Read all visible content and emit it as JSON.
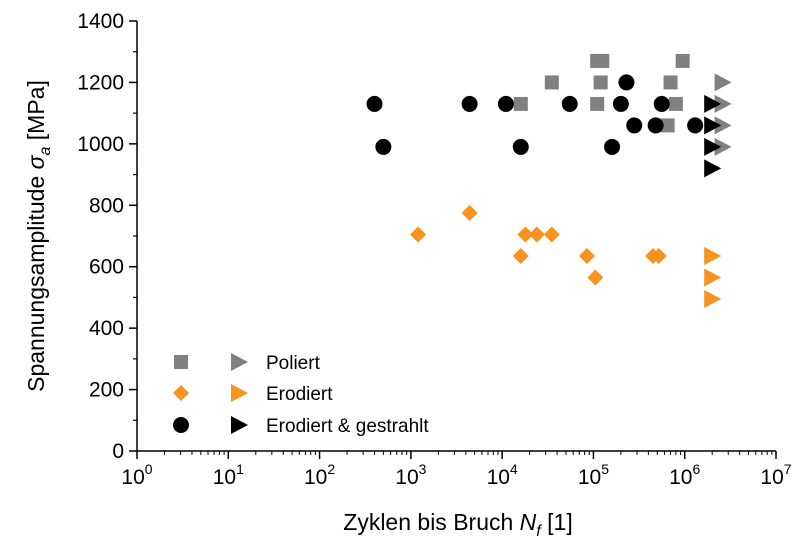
{
  "chart_data": {
    "type": "scatter",
    "title": "",
    "xlabel": {
      "main": "Zyklen bis Bruch ",
      "symbol": "N",
      "sub": "f",
      "unit": " [1]"
    },
    "ylabel": {
      "main": "Spannungsamplitude ",
      "symbol": "σ",
      "sub": "a",
      "unit": " [MPa]"
    },
    "x_scale": "log",
    "xlim": [
      1,
      10000000
    ],
    "ylim": [
      0,
      1400
    ],
    "x_ticks": [
      {
        "base": "10",
        "exp": "0",
        "value": 1
      },
      {
        "base": "10",
        "exp": "1",
        "value": 10
      },
      {
        "base": "10",
        "exp": "2",
        "value": 100
      },
      {
        "base": "10",
        "exp": "3",
        "value": 1000
      },
      {
        "base": "10",
        "exp": "4",
        "value": 10000
      },
      {
        "base": "10",
        "exp": "5",
        "value": 100000
      },
      {
        "base": "10",
        "exp": "6",
        "value": 1000000
      },
      {
        "base": "10",
        "exp": "7",
        "value": 10000000
      }
    ],
    "y_ticks": [
      "0",
      "200",
      "400",
      "600",
      "800",
      "1000",
      "1200",
      "1400"
    ],
    "grid": false,
    "legend_position": "bottom-left",
    "legend": [
      {
        "label": "Poliert",
        "color": "#808080"
      },
      {
        "label": "Erodiert",
        "color": "#f7931e"
      },
      {
        "label": "Erodiert & gestrahlt",
        "color": "#000000"
      }
    ],
    "series": [
      {
        "group": "Poliert",
        "marker": "square",
        "color": "#808080",
        "points": [
          [
            16000,
            1130
          ],
          [
            35000,
            1200
          ],
          [
            110000,
            1270
          ],
          [
            125000,
            1270
          ],
          [
            120000,
            1200
          ],
          [
            110000,
            1130
          ],
          [
            700000,
            1200
          ],
          [
            800000,
            1130
          ],
          [
            950000,
            1270
          ],
          [
            650000,
            1060
          ]
        ]
      },
      {
        "group": "Poliert",
        "marker": "triangle",
        "color": "#808080",
        "points": [
          [
            2600000,
            1200
          ],
          [
            2600000,
            1130
          ],
          [
            2600000,
            1060
          ],
          [
            2600000,
            990
          ]
        ]
      },
      {
        "group": "Erodiert",
        "marker": "diamond",
        "color": "#f7931e",
        "points": [
          [
            1200,
            705
          ],
          [
            4400,
            775
          ],
          [
            16000,
            635
          ],
          [
            18000,
            705
          ],
          [
            24000,
            705
          ],
          [
            35000,
            705
          ],
          [
            85000,
            635
          ],
          [
            105000,
            565
          ],
          [
            450000,
            635
          ],
          [
            520000,
            635
          ]
        ]
      },
      {
        "group": "Erodiert",
        "marker": "triangle",
        "color": "#f7931e",
        "points": [
          [
            2000000,
            635
          ],
          [
            2000000,
            565
          ],
          [
            2000000,
            495
          ]
        ]
      },
      {
        "group": "Erodiert & gestrahlt",
        "marker": "circle",
        "color": "#000000",
        "points": [
          [
            400,
            1130
          ],
          [
            500,
            990
          ],
          [
            4400,
            1130
          ],
          [
            11000,
            1130
          ],
          [
            16000,
            990
          ],
          [
            55000,
            1130
          ],
          [
            160000,
            990
          ],
          [
            200000,
            1130
          ],
          [
            230000,
            1200
          ],
          [
            280000,
            1060
          ],
          [
            480000,
            1060
          ],
          [
            560000,
            1130
          ],
          [
            1300000,
            1060
          ]
        ]
      },
      {
        "group": "Erodiert & gestrahlt",
        "marker": "triangle",
        "color": "#000000",
        "points": [
          [
            2000000,
            1130
          ],
          [
            2000000,
            1060
          ],
          [
            2000000,
            990
          ],
          [
            2000000,
            920
          ]
        ]
      }
    ]
  }
}
